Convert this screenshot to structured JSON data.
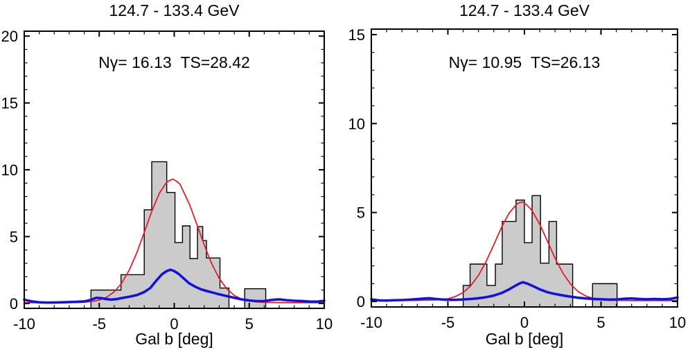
{
  "figure": {
    "background": "#ffffff",
    "text_color": "#000000"
  },
  "chart_data": [
    {
      "type": "bar",
      "subtype": "histogram-with-fit-curves",
      "title": "124.7 - 133.4 GeV",
      "annotation": "Nγ= 16.13  TS=28.42",
      "xlabel": "Gal b [deg]",
      "ylabel": "",
      "xlim": [
        -10,
        10
      ],
      "ylim": [
        -0.37,
        20.37
      ],
      "xticks": [
        -10,
        -5,
        0,
        5,
        10
      ],
      "yticks": [
        0,
        5,
        10,
        15,
        20
      ],
      "xtick_minor_step": 1,
      "ytick_minor_step": 1,
      "grid": false,
      "hist_fill": "#cbcbcb",
      "hist_edge": "#000000",
      "bins": [
        {
          "x1": -5.55,
          "x2": -3.55,
          "y": 1.0
        },
        {
          "x1": -3.55,
          "x2": -2.0,
          "y": 2.15
        },
        {
          "x1": -2.0,
          "x2": -1.5,
          "y": 7.0
        },
        {
          "x1": -1.5,
          "x2": -0.5,
          "y": 10.6
        },
        {
          "x1": -0.5,
          "x2": 0.05,
          "y": 8.3
        },
        {
          "x1": 0.05,
          "x2": 0.55,
          "y": 4.55
        },
        {
          "x1": 0.55,
          "x2": 1.05,
          "y": 5.8
        },
        {
          "x1": 1.05,
          "x2": 1.55,
          "y": 3.35
        },
        {
          "x1": 1.55,
          "x2": 1.9,
          "y": 5.75
        },
        {
          "x1": 1.9,
          "x2": 2.15,
          "y": 4.7
        },
        {
          "x1": 2.15,
          "x2": 3.05,
          "y": 3.4
        },
        {
          "x1": 3.05,
          "x2": 3.65,
          "y": 1.15
        },
        {
          "x1": 4.7,
          "x2": 6.1,
          "y": 1.1
        }
      ],
      "curves": [
        {
          "name": "signal-fit",
          "color": "#e51c23",
          "width": 1.8,
          "points": [
            [
              -10,
              0.05
            ],
            [
              -8,
              0.05
            ],
            [
              -7,
              0.06
            ],
            [
              -6,
              0.09
            ],
            [
              -5.5,
              0.14
            ],
            [
              -5,
              0.25
            ],
            [
              -4.5,
              0.47
            ],
            [
              -4,
              0.87
            ],
            [
              -3.5,
              1.52
            ],
            [
              -3,
              2.49
            ],
            [
              -2.5,
              3.78
            ],
            [
              -2,
              5.31
            ],
            [
              -1.5,
              6.88
            ],
            [
              -1,
              8.23
            ],
            [
              -0.5,
              9.07
            ],
            [
              -0.3,
              9.2
            ],
            [
              -0.1,
              9.3
            ],
            [
              0.15,
              9.15
            ],
            [
              0.4,
              8.9
            ],
            [
              0.5,
              8.63
            ],
            [
              1,
              7.46
            ],
            [
              1.5,
              5.95
            ],
            [
              2,
              4.37
            ],
            [
              2.5,
              2.97
            ],
            [
              3,
              1.87
            ],
            [
              3.5,
              1.1
            ],
            [
              4,
              0.6
            ],
            [
              4.5,
              0.32
            ],
            [
              5,
              0.19
            ],
            [
              5.5,
              0.11
            ],
            [
              6,
              0.08
            ],
            [
              7,
              0.06
            ],
            [
              8,
              0.05
            ],
            [
              10,
              0.05
            ]
          ]
        },
        {
          "name": "background",
          "color": "#1212e0",
          "width": 3.6,
          "points": [
            [
              -10,
              0.28
            ],
            [
              -9.5,
              0.15
            ],
            [
              -9,
              0.08
            ],
            [
              -8.5,
              0.06
            ],
            [
              -8,
              0.07
            ],
            [
              -7.5,
              0.08
            ],
            [
              -7,
              0.1
            ],
            [
              -6.5,
              0.12
            ],
            [
              -6,
              0.15
            ],
            [
              -5.6,
              0.25
            ],
            [
              -5.2,
              0.42
            ],
            [
              -4.9,
              0.4
            ],
            [
              -4.5,
              0.32
            ],
            [
              -4.2,
              0.28
            ],
            [
              -3.8,
              0.33
            ],
            [
              -3.4,
              0.42
            ],
            [
              -3,
              0.5
            ],
            [
              -2.5,
              0.62
            ],
            [
              -2,
              0.85
            ],
            [
              -1.6,
              1.15
            ],
            [
              -1.2,
              1.7
            ],
            [
              -0.8,
              2.2
            ],
            [
              -0.5,
              2.42
            ],
            [
              -0.25,
              2.52
            ],
            [
              0,
              2.42
            ],
            [
              0.3,
              2.2
            ],
            [
              0.7,
              1.8
            ],
            [
              1,
              1.5
            ],
            [
              1.4,
              1.25
            ],
            [
              1.8,
              1.05
            ],
            [
              2.2,
              0.92
            ],
            [
              2.6,
              0.8
            ],
            [
              3,
              0.68
            ],
            [
              3.5,
              0.55
            ],
            [
              4,
              0.42
            ],
            [
              4.5,
              0.3
            ],
            [
              5,
              0.22
            ],
            [
              5.5,
              0.17
            ],
            [
              6,
              0.18
            ],
            [
              6.5,
              0.26
            ],
            [
              7,
              0.3
            ],
            [
              7.5,
              0.24
            ],
            [
              8,
              0.2
            ],
            [
              8.5,
              0.18
            ],
            [
              9,
              0.14
            ],
            [
              9.5,
              0.13
            ],
            [
              10,
              0.2
            ]
          ]
        }
      ]
    },
    {
      "type": "bar",
      "subtype": "histogram-with-fit-curves",
      "title": "124.7 - 133.4 GeV",
      "annotation": "Nγ= 10.95  TS=26.13",
      "xlabel": "Gal b [deg]",
      "ylabel": "",
      "xlim": [
        -10,
        10
      ],
      "ylim": [
        -0.31,
        15.31
      ],
      "xticks": [
        -10,
        -5,
        0,
        5,
        10
      ],
      "yticks": [
        0,
        5,
        10,
        15
      ],
      "xtick_minor_step": 1,
      "ytick_minor_step": 1,
      "grid": false,
      "hist_fill": "#cbcbcb",
      "hist_edge": "#000000",
      "bins": [
        {
          "x1": -4.0,
          "x2": -3.55,
          "y": 0.9
        },
        {
          "x1": -3.55,
          "x2": -2.45,
          "y": 2.1
        },
        {
          "x1": -2.45,
          "x2": -1.9,
          "y": 0.9
        },
        {
          "x1": -1.9,
          "x2": -1.45,
          "y": 2.1
        },
        {
          "x1": -1.45,
          "x2": -0.55,
          "y": 4.5
        },
        {
          "x1": -0.55,
          "x2": 0.0,
          "y": 5.7
        },
        {
          "x1": 0.0,
          "x2": 0.5,
          "y": 3.3
        },
        {
          "x1": 0.5,
          "x2": 1.05,
          "y": 5.95
        },
        {
          "x1": 1.05,
          "x2": 1.6,
          "y": 2.15
        },
        {
          "x1": 1.6,
          "x2": 2.1,
          "y": 4.5
        },
        {
          "x1": 2.1,
          "x2": 3.15,
          "y": 2.1
        },
        {
          "x1": 4.45,
          "x2": 6.05,
          "y": 1.0
        }
      ],
      "curves": [
        {
          "name": "signal-fit",
          "color": "#e51c23",
          "width": 1.8,
          "points": [
            [
              -10,
              0.05
            ],
            [
              -8,
              0.05
            ],
            [
              -7,
              0.06
            ],
            [
              -6,
              0.08
            ],
            [
              -5.5,
              0.1
            ],
            [
              -5,
              0.15
            ],
            [
              -4.5,
              0.28
            ],
            [
              -4,
              0.5
            ],
            [
              -3.5,
              0.89
            ],
            [
              -3,
              1.47
            ],
            [
              -2.5,
              2.25
            ],
            [
              -2,
              3.19
            ],
            [
              -1.5,
              4.16
            ],
            [
              -1,
              4.97
            ],
            [
              -0.5,
              5.47
            ],
            [
              -0.3,
              5.55
            ],
            [
              -0.15,
              5.6
            ],
            [
              0.05,
              5.5
            ],
            [
              0.3,
              5.3
            ],
            [
              0.5,
              5.1
            ],
            [
              1,
              4.34
            ],
            [
              1.5,
              3.39
            ],
            [
              2,
              2.43
            ],
            [
              2.5,
              1.61
            ],
            [
              3,
              0.99
            ],
            [
              3.5,
              0.56
            ],
            [
              4,
              0.31
            ],
            [
              4.5,
              0.17
            ],
            [
              5,
              0.1
            ],
            [
              5.5,
              0.07
            ],
            [
              6,
              0.06
            ],
            [
              7,
              0.05
            ],
            [
              8,
              0.05
            ],
            [
              10,
              0.05
            ]
          ]
        },
        {
          "name": "background",
          "color": "#1212e0",
          "width": 3.6,
          "points": [
            [
              -10,
              0.12
            ],
            [
              -9.5,
              0.06
            ],
            [
              -9,
              0.05
            ],
            [
              -8.5,
              0.07
            ],
            [
              -8,
              0.08
            ],
            [
              -7.5,
              0.1
            ],
            [
              -7,
              0.13
            ],
            [
              -6.5,
              0.17
            ],
            [
              -6.2,
              0.18
            ],
            [
              -5.8,
              0.14
            ],
            [
              -5.4,
              0.11
            ],
            [
              -5,
              0.09
            ],
            [
              -4.5,
              0.09
            ],
            [
              -4,
              0.11
            ],
            [
              -3.5,
              0.14
            ],
            [
              -3,
              0.18
            ],
            [
              -2.5,
              0.24
            ],
            [
              -2,
              0.33
            ],
            [
              -1.5,
              0.47
            ],
            [
              -1,
              0.68
            ],
            [
              -0.6,
              0.88
            ],
            [
              -0.3,
              1.02
            ],
            [
              -0.1,
              1.08
            ],
            [
              0.2,
              1.0
            ],
            [
              0.6,
              0.85
            ],
            [
              1,
              0.68
            ],
            [
              1.5,
              0.52
            ],
            [
              2,
              0.42
            ],
            [
              2.5,
              0.34
            ],
            [
              3,
              0.27
            ],
            [
              3.5,
              0.21
            ],
            [
              4,
              0.17
            ],
            [
              4.5,
              0.14
            ],
            [
              5,
              0.12
            ],
            [
              5.5,
              0.1
            ],
            [
              6,
              0.11
            ],
            [
              6.5,
              0.15
            ],
            [
              7,
              0.17
            ],
            [
              7.5,
              0.14
            ],
            [
              8,
              0.12
            ],
            [
              8.5,
              0.14
            ],
            [
              9,
              0.12
            ],
            [
              9.5,
              0.14
            ],
            [
              10,
              0.22
            ]
          ]
        }
      ]
    }
  ]
}
